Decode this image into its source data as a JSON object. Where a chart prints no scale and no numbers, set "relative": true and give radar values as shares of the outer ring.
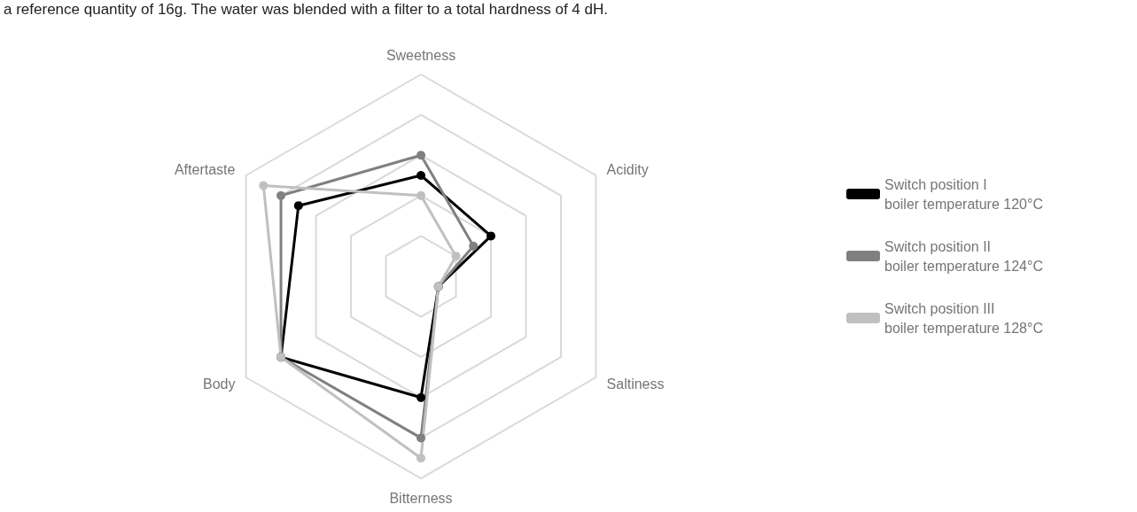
{
  "chart_data": {
    "type": "radar",
    "relative": true,
    "categories": [
      "Sweetness",
      "Acidity",
      "Saltiness",
      "Bitterness",
      "Body",
      "Aftertaste"
    ],
    "series": [
      {
        "name": "Switch position I\nboiler temperature 120°C",
        "color": "#000000",
        "values": [
          0.5,
          0.4,
          0.1,
          0.6,
          0.8,
          0.7
        ]
      },
      {
        "name": "Switch position II\nboiler temperature 124°C",
        "color": "#808080",
        "values": [
          0.6,
          0.3,
          0.1,
          0.8,
          0.8,
          0.8
        ]
      },
      {
        "name": "Switch position III\nboiler temperature 128°C",
        "color": "#c0c0c0",
        "values": [
          0.4,
          0.2,
          0.1,
          0.9,
          0.8,
          0.9
        ]
      }
    ],
    "annotations": [
      "a reference quantity of 16g. The water was blended with a filter to a total hardness of 4 dH."
    ],
    "legend": "right",
    "marker": "circle",
    "line_style": "solid",
    "grid": true
  }
}
